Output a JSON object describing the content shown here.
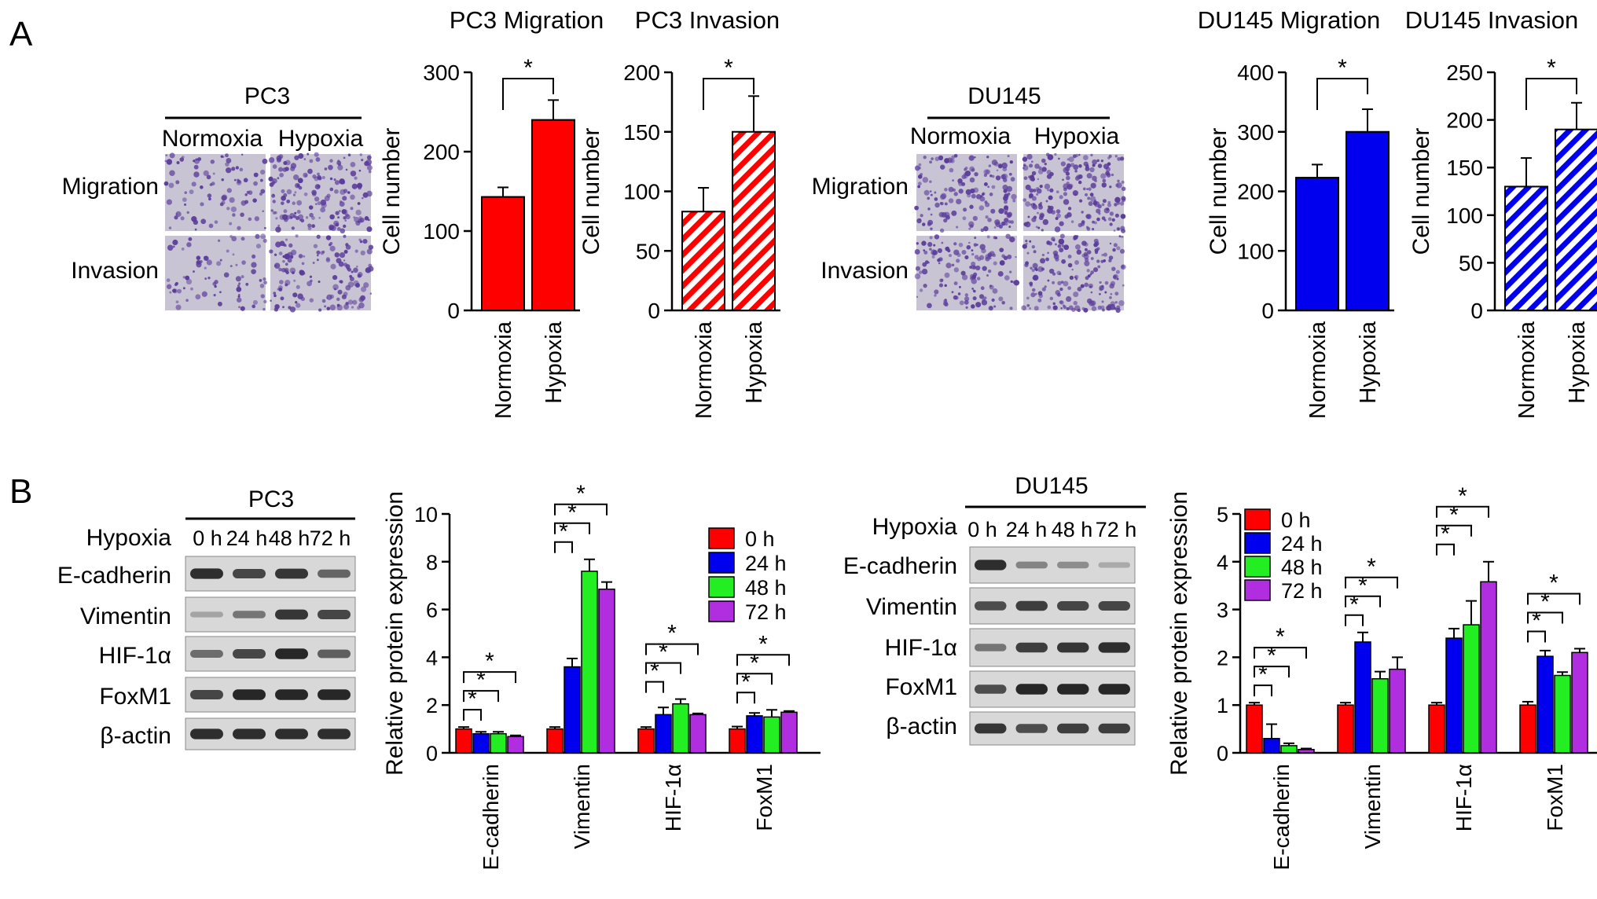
{
  "panel_labels": {
    "a": "A",
    "b": "B"
  },
  "colors": {
    "red": "#ff0000",
    "blue": "#0000ee",
    "green": "#22ee22",
    "purple": "#b02ee0",
    "blot_bg": "#d8d8d8",
    "blot_band": "#1e1e1e",
    "micro_bg": "#c8c4d4",
    "cells": "#5b3c9a"
  },
  "panelA": {
    "pc3_blot": {
      "cell_line": "PC3",
      "col_labels": [
        "Normoxia",
        "Hypoxia"
      ],
      "row_labels": [
        "Migration",
        "Invasion"
      ]
    },
    "du145_blot": {
      "cell_line": "DU145",
      "col_labels": [
        "Normoxia",
        "Hypoxia"
      ],
      "row_labels": [
        "Migration",
        "Invasion"
      ]
    }
  },
  "panelB": {
    "pc3_blot": {
      "cell_line": "PC3",
      "condition_label": "Hypoxia",
      "timepoints": [
        "0 h",
        "24 h",
        "48 h",
        "72 h"
      ],
      "proteins": [
        "E-cadherin",
        "Vimentin",
        "HIF-1α",
        "FoxM1",
        "β-actin"
      ]
    },
    "du145_blot": {
      "cell_line": "DU145",
      "condition_label": "Hypoxia",
      "timepoints": [
        "0 h",
        "24 h",
        "48 h",
        "72 h"
      ],
      "proteins": [
        "E-cadherin",
        "Vimentin",
        "HIF-1α",
        "FoxM1",
        "β-actin"
      ]
    }
  },
  "chart_data": [
    {
      "id": "pc3_migration",
      "type": "bar",
      "title": "PC3 Migration",
      "ylabel": "Cell number",
      "ylim": [
        0,
        300
      ],
      "yticks": [
        0,
        100,
        200,
        300
      ],
      "categories": [
        "Normoxia",
        "Hypoxia"
      ],
      "values": [
        143,
        240
      ],
      "errors": [
        12,
        25
      ],
      "fill": "solid",
      "color": "#ff0000",
      "significance": "*"
    },
    {
      "id": "pc3_invasion",
      "type": "bar",
      "title": "PC3 Invasion",
      "ylabel": "Cell number",
      "ylim": [
        0,
        200
      ],
      "yticks": [
        0,
        50,
        100,
        150,
        200
      ],
      "categories": [
        "Normoxia",
        "Hypoxia"
      ],
      "values": [
        83,
        150
      ],
      "errors": [
        20,
        30
      ],
      "fill": "hatched",
      "color": "#ff0000",
      "significance": "*"
    },
    {
      "id": "du145_migration",
      "type": "bar",
      "title": "DU145 Migration",
      "ylabel": "Cell number",
      "ylim": [
        0,
        400
      ],
      "yticks": [
        0,
        100,
        200,
        300,
        400
      ],
      "categories": [
        "Normoxia",
        "Hypoxia"
      ],
      "values": [
        223,
        300
      ],
      "errors": [
        22,
        38
      ],
      "fill": "solid",
      "color": "#0000ee",
      "significance": "*"
    },
    {
      "id": "du145_invasion",
      "type": "bar",
      "title": "DU145 Invasion",
      "ylabel": "Cell number",
      "ylim": [
        0,
        250
      ],
      "yticks": [
        0,
        50,
        100,
        150,
        200,
        250
      ],
      "categories": [
        "Normoxia",
        "Hypoxia"
      ],
      "values": [
        130,
        190
      ],
      "errors": [
        30,
        28
      ],
      "fill": "hatched",
      "color": "#0000ee",
      "significance": "*"
    },
    {
      "id": "pc3_protein",
      "type": "bar",
      "ylabel": "Relative protein expression",
      "ylim": [
        0,
        10
      ],
      "yticks": [
        0,
        2,
        4,
        6,
        8,
        10
      ],
      "categories": [
        "E-cadherin",
        "Vimentin",
        "HIF-1α",
        "FoxM1"
      ],
      "legend_position": "top-right",
      "series": [
        {
          "name": "0 h",
          "color": "#ff0000",
          "values": [
            1.0,
            1.0,
            1.0,
            1.0
          ],
          "errors": [
            0.08,
            0.08,
            0.08,
            0.1
          ]
        },
        {
          "name": "24 h",
          "color": "#0000ee",
          "values": [
            0.8,
            3.6,
            1.6,
            1.55
          ],
          "errors": [
            0.08,
            0.35,
            0.3,
            0.12
          ]
        },
        {
          "name": "48 h",
          "color": "#22ee22",
          "values": [
            0.8,
            7.6,
            2.05,
            1.5
          ],
          "errors": [
            0.08,
            0.5,
            0.2,
            0.3
          ]
        },
        {
          "name": "72 h",
          "color": "#b02ee0",
          "values": [
            0.68,
            6.85,
            1.6,
            1.7
          ],
          "errors": [
            0.05,
            0.3,
            0.05,
            0.05
          ]
        }
      ],
      "significance": "*"
    },
    {
      "id": "du145_protein",
      "type": "bar",
      "ylabel": "Relative protein expression",
      "ylim": [
        0,
        5
      ],
      "yticks": [
        0,
        1,
        2,
        3,
        4,
        5
      ],
      "categories": [
        "E-cadherin",
        "Vimentin",
        "HIF-1α",
        "FoxM1"
      ],
      "legend_position": "top-left",
      "series": [
        {
          "name": "0 h",
          "color": "#ff0000",
          "values": [
            1.0,
            1.0,
            1.0,
            1.0
          ],
          "errors": [
            0.05,
            0.05,
            0.05,
            0.07
          ]
        },
        {
          "name": "24 h",
          "color": "#0000ee",
          "values": [
            0.3,
            2.32,
            2.4,
            2.02
          ],
          "errors": [
            0.3,
            0.2,
            0.2,
            0.12
          ]
        },
        {
          "name": "48 h",
          "color": "#22ee22",
          "values": [
            0.15,
            1.55,
            2.68,
            1.62
          ],
          "errors": [
            0.05,
            0.15,
            0.5,
            0.07
          ]
        },
        {
          "name": "72 h",
          "color": "#b02ee0",
          "values": [
            0.07,
            1.75,
            3.58,
            2.1
          ],
          "errors": [
            0.02,
            0.25,
            0.42,
            0.08
          ]
        }
      ],
      "significance": "*"
    }
  ]
}
